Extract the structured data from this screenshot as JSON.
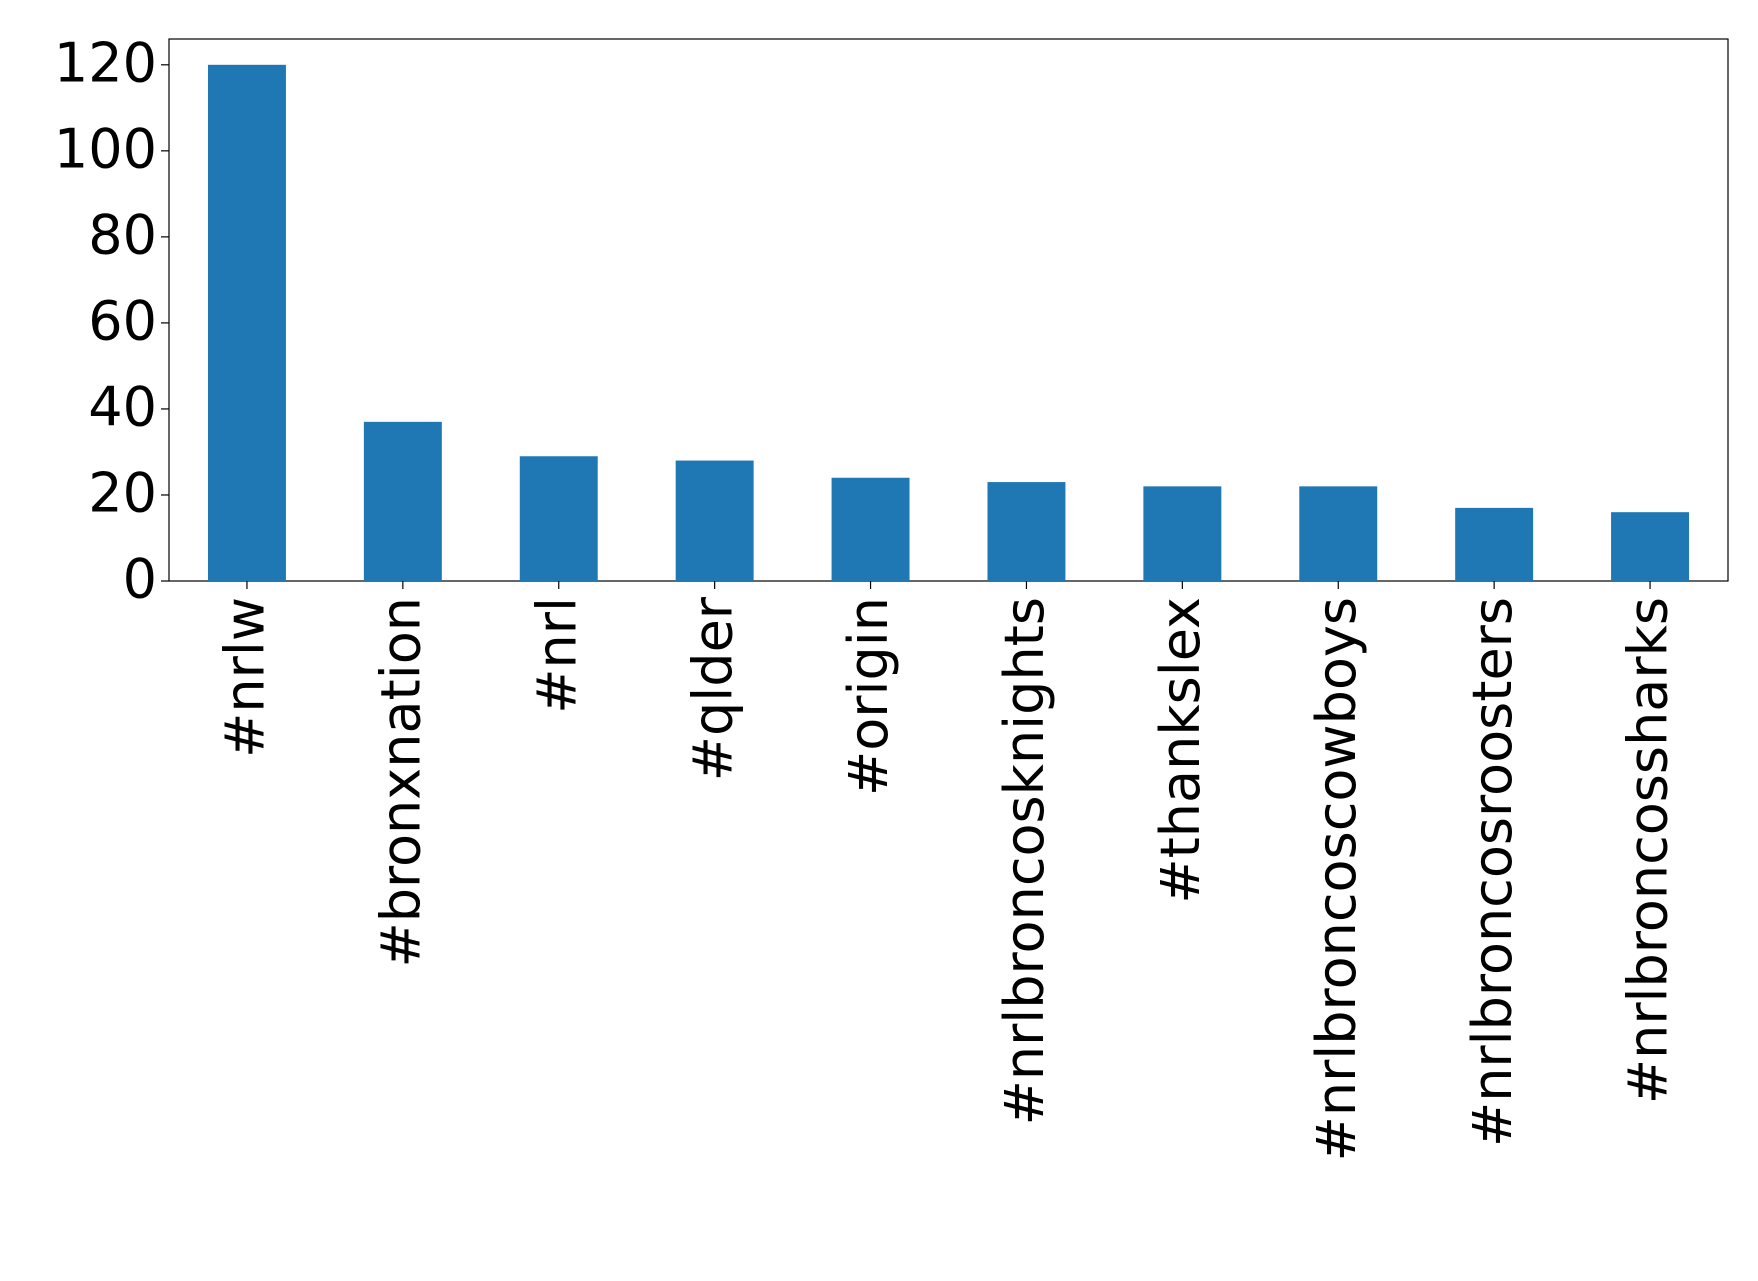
{
  "chart_data": {
    "type": "bar",
    "categories": [
      "#nrlw",
      "#bronxnation",
      "#nrl",
      "#qlder",
      "#origin",
      "#nrlbroncosknights",
      "#thankslex",
      "#nrlbroncoscowboys",
      "#nrlbroncosroosters",
      "#nrlbroncossharks"
    ],
    "values": [
      120,
      37,
      29,
      28,
      24,
      23,
      22,
      22,
      17,
      16
    ],
    "color": "#1f77b4",
    "ylim": [
      0,
      126
    ],
    "yticks": [
      0,
      20,
      40,
      60,
      80,
      100,
      120
    ],
    "grid": false
  }
}
